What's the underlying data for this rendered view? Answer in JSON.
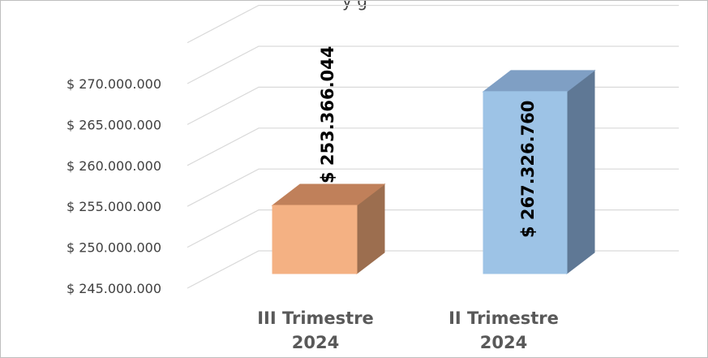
{
  "chart_data": {
    "type": "bar",
    "title": "y                                                     g",
    "categories": [
      [
        "III Trimestre",
        "2024"
      ],
      [
        "II Trimestre",
        "2024"
      ]
    ],
    "values": [
      253366044,
      267326760
    ],
    "data_labels": [
      "$ 253.366.044",
      "$ 267.326.760"
    ],
    "ylim": [
      245000000,
      270000000
    ],
    "yticks": [
      {
        "value": 245000000,
        "label": "$ 245.000.000"
      },
      {
        "value": 250000000,
        "label": "$ 250.000.000"
      },
      {
        "value": 255000000,
        "label": "$ 255.000.000"
      },
      {
        "value": 260000000,
        "label": "$ 260.000.000"
      },
      {
        "value": 265000000,
        "label": "$ 265.000.000"
      },
      {
        "value": 270000000,
        "label": "$ 270.000.000"
      }
    ],
    "colors": {
      "bars": [
        {
          "front": "#f4b183",
          "side": "#9c6e4f",
          "top": "#c0805a"
        },
        {
          "front": "#9dc3e6",
          "side": "#5f7895",
          "top": "#7f9fc4"
        }
      ],
      "grid": "#d9d9d9",
      "axis_text": "#404040",
      "category_text": "#595959"
    },
    "grid": true,
    "legend": "none",
    "style": "3d-column"
  }
}
